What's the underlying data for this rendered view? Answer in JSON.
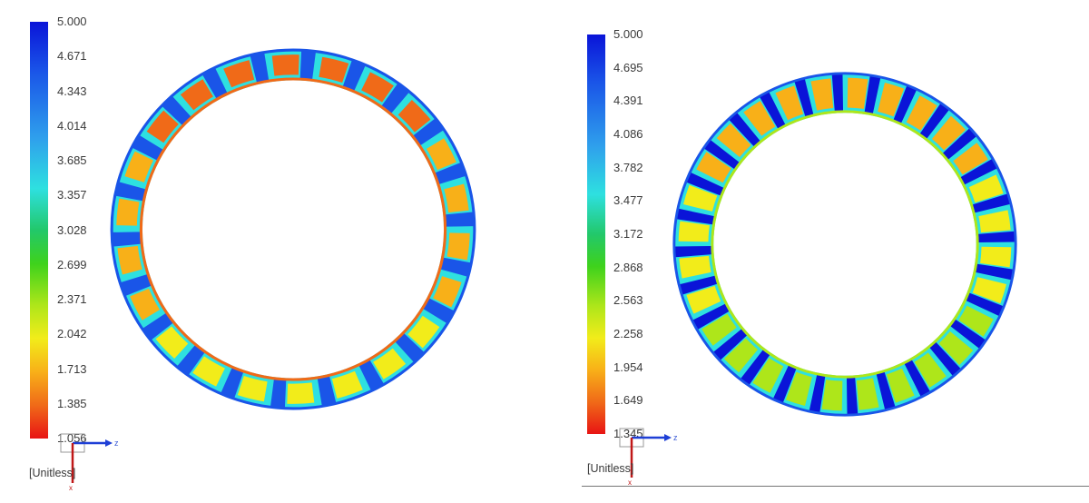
{
  "plots": [
    {
      "colorbar": {
        "ticks": [
          "5.000",
          "4.671",
          "4.343",
          "4.014",
          "3.685",
          "3.357",
          "3.028",
          "2.699",
          "2.371",
          "2.042",
          "1.713",
          "1.385",
          "1.056"
        ],
        "colors": [
          "#0a14d8",
          "#1a55e8",
          "#2fa0ec",
          "#2ee0e0",
          "#22c86a",
          "#3ed21c",
          "#aee61a",
          "#f2ec1a",
          "#f8b018",
          "#f06a18",
          "#e81414"
        ]
      },
      "unit": "[Unitless]",
      "axes": {
        "horizontal": "z",
        "vertical": "x"
      },
      "segments": 22
    },
    {
      "colorbar": {
        "ticks": [
          "5.000",
          "4.695",
          "4.391",
          "4.086",
          "3.782",
          "3.477",
          "3.172",
          "2.868",
          "2.563",
          "2.258",
          "1.954",
          "1.649",
          "1.345"
        ],
        "colors": [
          "#0a14d8",
          "#1a55e8",
          "#2fa0ec",
          "#2ee0e0",
          "#22c86a",
          "#3ed21c",
          "#aee61a",
          "#f2ec1a",
          "#f8b018",
          "#f06a18",
          "#e81414"
        ]
      },
      "unit": "[Unitless]",
      "axes": {
        "horizontal": "z",
        "vertical": "x"
      },
      "segments": 28
    }
  ]
}
